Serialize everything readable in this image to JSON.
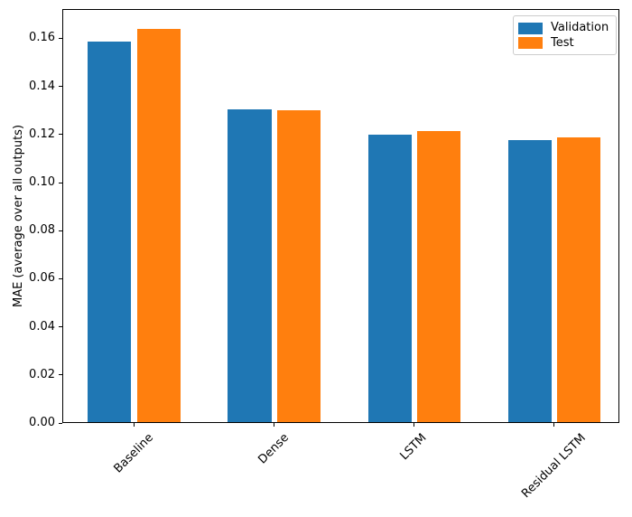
{
  "chart_data": {
    "type": "bar",
    "title": "",
    "xlabel": "",
    "ylabel": "MAE (average over all outputs)",
    "categories": [
      "Baseline",
      "Dense",
      "LSTM",
      "Residual LSTM"
    ],
    "series": [
      {
        "name": "Validation",
        "color": "#1f77b4",
        "values": [
          0.1585,
          0.1303,
          0.1198,
          0.1177
        ]
      },
      {
        "name": "Test",
        "color": "#ff7f0e",
        "values": [
          0.1638,
          0.13,
          0.1213,
          0.1188
        ]
      }
    ],
    "ylim": [
      0,
      0.1722
    ],
    "xlim": [
      -0.512,
      3.464
    ],
    "yticks": [
      "0.00",
      "0.02",
      "0.04",
      "0.06",
      "0.08",
      "0.10",
      "0.12",
      "0.14",
      "0.16"
    ],
    "grid": false,
    "x_tick_rotation_deg": 45,
    "bar_width_units": 0.31,
    "series_offset_units": 0.35,
    "legend": {
      "position": "upper right",
      "entries": [
        "Validation",
        "Test"
      ]
    }
  },
  "colors": {
    "background": "#ffffff",
    "axis": "#000000",
    "text": "#000000",
    "legend_border": "#cccccc"
  }
}
